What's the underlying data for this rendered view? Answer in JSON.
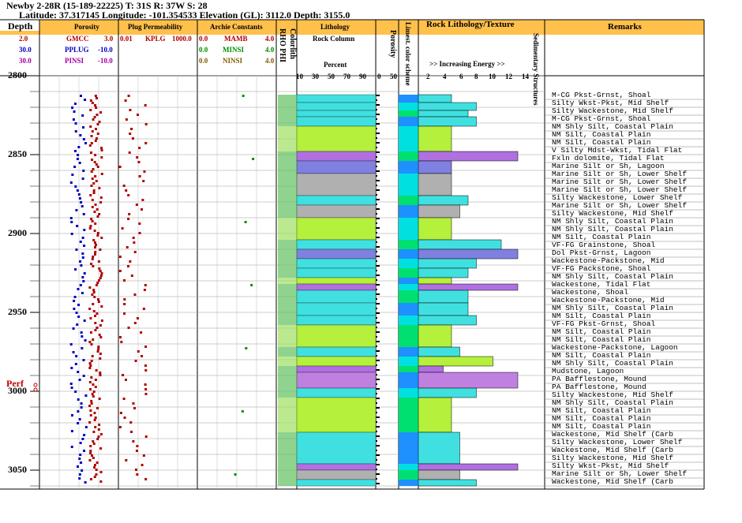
{
  "well": {
    "title": "Newby 2-28R (15-189-22225) T: 31S R: 37W S: 28",
    "subtitle": "Latitude: 37.317145 Longitude: -101.354533 Elevation (GL): 3112.0 Depth: 3155.0"
  },
  "headers": {
    "depth": "Depth",
    "porosity": "Porosity",
    "plug_perm": "Plug Permeability",
    "archie": "Archie Constants",
    "colorlith": "Colorlith",
    "rhophi": "RHO PHI",
    "lithology": "Lithology",
    "rock_column": "Rock Column",
    "percent": "Percent",
    "porosity2": "Porosity",
    "lime_scheme": "Limest. color scheme",
    "rock_texture": "Rock Lithology/Texture",
    "increasing_energy": ">> Increasing Energy >>",
    "sed_struct": "Sedimentary Structures",
    "remarks": "Remarks",
    "perf": "Perf"
  },
  "curves": {
    "gmcc": {
      "name": "GMCC",
      "min": "2.0",
      "max": "3.0",
      "color": "#b00000"
    },
    "pplug": {
      "name": "PPLUG",
      "min": "30.0",
      "max": "-10.0",
      "color": "#0000c0"
    },
    "pinsi": {
      "name": "PINSI",
      "min": "30.0",
      "max": "-10.0",
      "color": "#a000a0"
    },
    "kplg": {
      "name": "KPLG",
      "min": "0.01",
      "max": "1000.0",
      "color": "#b00000"
    },
    "mamb": {
      "name": "MAMB",
      "min": "0.0",
      "max": "4.0",
      "color": "#b00000"
    },
    "minsi": {
      "name": "MINSI",
      "min": "0.0",
      "max": "4.0",
      "color": "#009000"
    },
    "ninsi": {
      "name": "NINSI",
      "min": "0.0",
      "max": "4.0",
      "color": "#806000"
    }
  },
  "scales": {
    "lith_ticks": [
      "10",
      "30",
      "50",
      "70",
      "90"
    ],
    "por_ticks": [
      "0",
      "50"
    ],
    "energy_ticks": [
      "2",
      "4",
      "6",
      "8",
      "10",
      "12",
      "14"
    ]
  },
  "chart_data": {
    "type": "well-log",
    "depth_range": [
      2800,
      3060
    ],
    "depth_ticks": [
      "2800",
      "2850",
      "2900",
      "2950",
      "3000",
      "3050"
    ],
    "perf_depth": 2998,
    "remarks": [
      {
        "depth": 2815,
        "text": "M-CG Pkst-Grnst, Shoal"
      },
      {
        "depth": 2820,
        "text": "Silty Wkst-Pkst, Mid Shelf"
      },
      {
        "depth": 2825,
        "text": "Silty Wackestone, Mid Shelf"
      },
      {
        "depth": 2830,
        "text": "M-CG Pkst-Grnst, Shoal"
      },
      {
        "depth": 2835,
        "text": "NM Shly Silt, Coastal Plain"
      },
      {
        "depth": 2840,
        "text": "NM Silt, Coastal Plain"
      },
      {
        "depth": 2845,
        "text": "NM Silt, Coastal Plain"
      },
      {
        "depth": 2850,
        "text": "V Silty Mdst-Wkst, Tidal Flat"
      },
      {
        "depth": 2855,
        "text": "Fxln dolomite, Tidal Flat"
      },
      {
        "depth": 2860,
        "text": "Marine Silt or Sh, Lagoon"
      },
      {
        "depth": 2865,
        "text": "Marine Silt or Sh, Lower Shelf"
      },
      {
        "depth": 2870,
        "text": "Marine Silt or Sh, Lower Shelf"
      },
      {
        "depth": 2875,
        "text": "Marine Silt or Sh, Lower Shelf"
      },
      {
        "depth": 2880,
        "text": "Silty Wackestone, Lower Shelf"
      },
      {
        "depth": 2885,
        "text": "Marine Silt or Sh, Lower Shelf"
      },
      {
        "depth": 2890,
        "text": "Silty Wackestone, Mid Shelf"
      },
      {
        "depth": 2895,
        "text": "NM Shly Silt, Coastal Plain"
      },
      {
        "depth": 2900,
        "text": "NM Shly Silt, Coastal Plain"
      },
      {
        "depth": 2905,
        "text": "NM Silt, Coastal Plain"
      },
      {
        "depth": 2910,
        "text": "VF-FG Grainstone, Shoal"
      },
      {
        "depth": 2915,
        "text": "Dol Pkst-Grnst, Lagoon"
      },
      {
        "depth": 2920,
        "text": "Wackestone-Packstone, Mid"
      },
      {
        "depth": 2925,
        "text": "VF-FG Packstone, Shoal"
      },
      {
        "depth": 2930,
        "text": "NM Shly Silt, Coastal Plain"
      },
      {
        "depth": 2935,
        "text": "Wackestone, Tidal Flat"
      },
      {
        "depth": 2940,
        "text": "Wackestone, Shoal"
      },
      {
        "depth": 2945,
        "text": "Wackestone-Packstone, Mid"
      },
      {
        "depth": 2950,
        "text": "NM Shly Silt, Coastal Plain"
      },
      {
        "depth": 2955,
        "text": "NM Silt, Coastal Plain"
      },
      {
        "depth": 2960,
        "text": "VF-FG Pkst-Grnst, Shoal"
      },
      {
        "depth": 2965,
        "text": "NM Silt, Coastal Plain"
      },
      {
        "depth": 2970,
        "text": "NM Silt, Coastal Plain"
      },
      {
        "depth": 2975,
        "text": "Wackestone-Packstone, Lagoon"
      },
      {
        "depth": 2980,
        "text": "NM Silt, Coastal Plain"
      },
      {
        "depth": 2985,
        "text": "NM Shly Silt, Coastal Plain"
      },
      {
        "depth": 2990,
        "text": "Mudstone, Lagoon"
      },
      {
        "depth": 2995,
        "text": "PA Bafflestone, Mound"
      },
      {
        "depth": 3000,
        "text": "PA Bafflestone, Mound"
      },
      {
        "depth": 3005,
        "text": "Silty Wackestone, Mid Shelf"
      },
      {
        "depth": 3010,
        "text": "NM Shly Silt, Coastal Plain"
      },
      {
        "depth": 3015,
        "text": "NM Silt, Coastal Plain"
      },
      {
        "depth": 3020,
        "text": "NM Silt, Coastal Plain"
      },
      {
        "depth": 3025,
        "text": "NM Silt, Coastal Plain"
      },
      {
        "depth": 3030,
        "text": "Wackestone, Mid Shelf (Carb"
      },
      {
        "depth": 3035,
        "text": "Silty Wackestone, Lower Shelf"
      },
      {
        "depth": 3040,
        "text": "Wackestone, Mid Shelf (Carb"
      },
      {
        "depth": 3045,
        "text": "Silty Wackestone, Mid Shelf"
      },
      {
        "depth": 3050,
        "text": "Silty Wkst-Pkst, Mid Shelf"
      },
      {
        "depth": 3055,
        "text": "Marine Silt or Sh, Lower Shelf"
      },
      {
        "depth": 3060,
        "text": "Wackestone, Mid Shelf (Carb"
      }
    ],
    "energy_bars": [
      {
        "top": 2812,
        "base": 2817,
        "energy": 4,
        "type": "grainstone"
      },
      {
        "top": 2817,
        "base": 2822,
        "energy": 7,
        "type": "packstone"
      },
      {
        "top": 2822,
        "base": 2826,
        "energy": 6,
        "type": "wackestone"
      },
      {
        "top": 2826,
        "base": 2832,
        "energy": 7,
        "type": "packstone"
      },
      {
        "top": 2832,
        "base": 2848,
        "energy": 4,
        "type": "silt"
      },
      {
        "top": 2848,
        "base": 2854,
        "energy": 12,
        "type": "mudstone"
      },
      {
        "top": 2854,
        "base": 2862,
        "energy": 4,
        "type": "dolomite"
      },
      {
        "top": 2862,
        "base": 2876,
        "energy": 4,
        "type": "shale"
      },
      {
        "top": 2876,
        "base": 2882,
        "energy": 6,
        "type": "wackestone"
      },
      {
        "top": 2882,
        "base": 2890,
        "energy": 5,
        "type": "shale"
      },
      {
        "top": 2890,
        "base": 2904,
        "energy": 4,
        "type": "silt"
      },
      {
        "top": 2904,
        "base": 2910,
        "energy": 10,
        "type": "grainstone"
      },
      {
        "top": 2910,
        "base": 2916,
        "energy": 12,
        "type": "dolomite"
      },
      {
        "top": 2916,
        "base": 2922,
        "energy": 7,
        "type": "packstone"
      },
      {
        "top": 2922,
        "base": 2928,
        "energy": 6,
        "type": "packstone"
      },
      {
        "top": 2928,
        "base": 2932,
        "energy": 4,
        "type": "silt"
      },
      {
        "top": 2932,
        "base": 2936,
        "energy": 12,
        "type": "mudstone"
      },
      {
        "top": 2936,
        "base": 2944,
        "energy": 6,
        "type": "wackestone"
      },
      {
        "top": 2944,
        "base": 2952,
        "energy": 6,
        "type": "packstone"
      },
      {
        "top": 2952,
        "base": 2958,
        "energy": 7,
        "type": "grainstone"
      },
      {
        "top": 2958,
        "base": 2972,
        "energy": 4,
        "type": "silt"
      },
      {
        "top": 2972,
        "base": 2978,
        "energy": 5,
        "type": "packstone"
      },
      {
        "top": 2978,
        "base": 2984,
        "energy": 9,
        "type": "silt"
      },
      {
        "top": 2984,
        "base": 2988,
        "energy": 3,
        "type": "mudstone"
      },
      {
        "top": 2988,
        "base": 2998,
        "energy": 12,
        "type": "baffle"
      },
      {
        "top": 2998,
        "base": 3004,
        "energy": 7,
        "type": "wackestone"
      },
      {
        "top": 3004,
        "base": 3026,
        "energy": 4,
        "type": "silt"
      },
      {
        "top": 3026,
        "base": 3046,
        "energy": 5,
        "type": "wackestone"
      },
      {
        "top": 3046,
        "base": 3050,
        "energy": 12,
        "type": "mudstone"
      },
      {
        "top": 3050,
        "base": 3056,
        "energy": 5,
        "type": "shale"
      },
      {
        "top": 3056,
        "base": 3060,
        "energy": 7,
        "type": "packstone"
      }
    ]
  },
  "colors": {
    "header_bg": "#ffc04c",
    "grid": "#000000",
    "remark_line": "#808080",
    "perf": "#c00000",
    "lime": "#40e0e0",
    "silt": "#b4f03c",
    "dolo": "#8080e0",
    "shale": "#b0b0b0"
  }
}
